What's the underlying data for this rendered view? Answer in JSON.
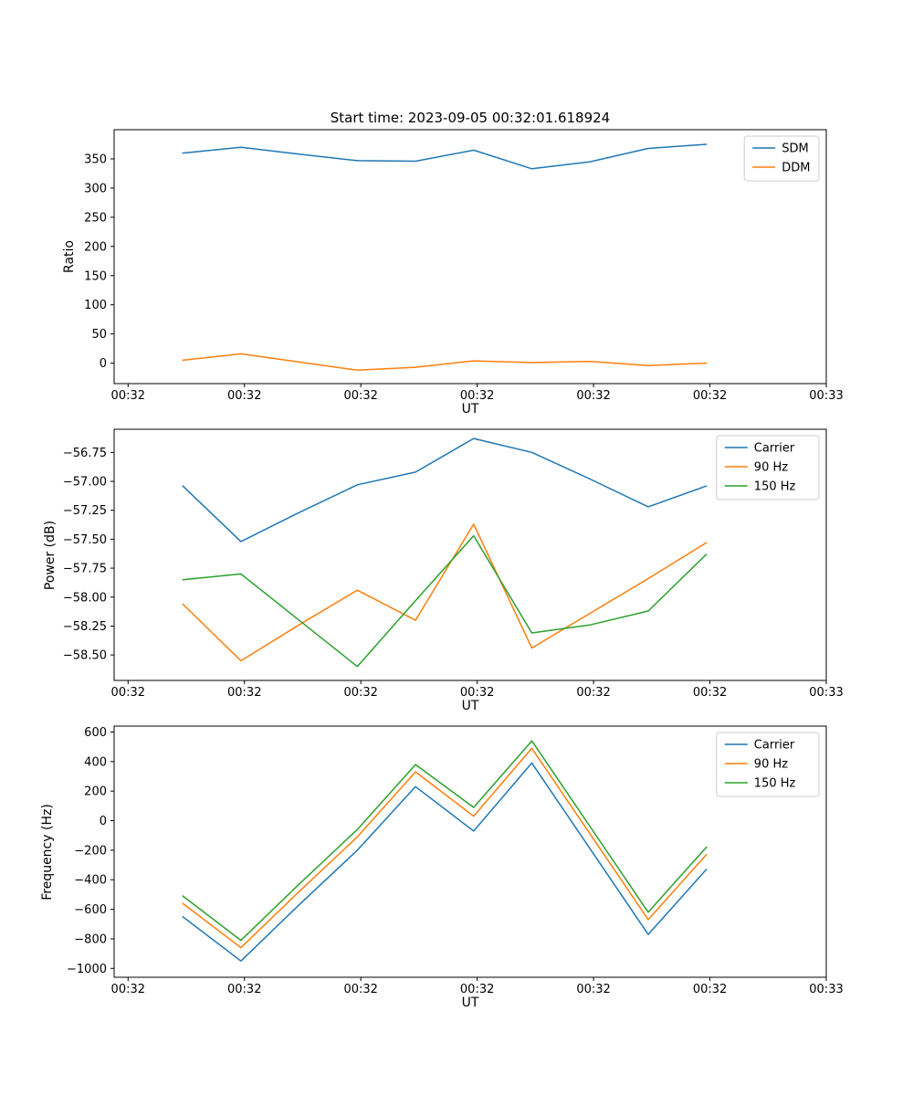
{
  "figure": {
    "background": "#ffffff",
    "text_color": "#000000"
  },
  "chart_data": [
    {
      "type": "line",
      "title": "Start time: 2023-09-05 00:32:01.618924",
      "xlabel": "UT",
      "ylabel": "Ratio",
      "x": [
        4.7,
        9.7,
        14.7,
        19.7,
        24.7,
        29.7,
        34.7,
        39.7,
        44.7,
        49.7
      ],
      "xlim": [
        -1.2,
        60
      ],
      "xticks": [
        0,
        10,
        20,
        30,
        40,
        50,
        60
      ],
      "xtick_labels": [
        "00:32",
        "00:32",
        "00:32",
        "00:32",
        "00:32",
        "00:32",
        "00:33"
      ],
      "ylim": [
        -35,
        400
      ],
      "yticks": [
        0,
        50,
        100,
        150,
        200,
        250,
        300,
        350
      ],
      "ytick_labels": [
        "0",
        "50",
        "100",
        "150",
        "200",
        "250",
        "300",
        "350"
      ],
      "grid": false,
      "legend": {
        "location": "upper right"
      },
      "series": [
        {
          "name": "SDM",
          "color": "#1f77b4",
          "values": [
            360,
            370,
            358,
            347,
            346,
            365,
            333,
            345,
            368,
            375
          ]
        },
        {
          "name": "DDM",
          "color": "#ff7f0e",
          "values": [
            5,
            16,
            2,
            -12,
            -7,
            4,
            1,
            3,
            -4,
            0
          ]
        }
      ]
    },
    {
      "type": "line",
      "title": "",
      "xlabel": "UT",
      "ylabel": "Power (dB)",
      "x": [
        4.7,
        9.7,
        14.7,
        19.7,
        24.7,
        29.7,
        34.7,
        39.7,
        44.7,
        49.7
      ],
      "xlim": [
        -1.2,
        60
      ],
      "xticks": [
        0,
        10,
        20,
        30,
        40,
        50,
        60
      ],
      "xtick_labels": [
        "00:32",
        "00:32",
        "00:32",
        "00:32",
        "00:32",
        "00:32",
        "00:33"
      ],
      "ylim": [
        -58.72,
        -56.55
      ],
      "yticks": [
        -58.5,
        -58.25,
        -58.0,
        -57.75,
        -57.5,
        -57.25,
        -57.0,
        -56.75
      ],
      "ytick_labels": [
        "−58.50",
        "−58.25",
        "−58.00",
        "−57.75",
        "−57.50",
        "−57.25",
        "−57.00",
        "−56.75"
      ],
      "grid": false,
      "legend": {
        "location": "upper right"
      },
      "series": [
        {
          "name": "Carrier",
          "color": "#1f77b4",
          "values": [
            -57.04,
            -57.52,
            -57.27,
            -57.03,
            -56.92,
            -56.63,
            -56.75,
            -56.98,
            -57.22,
            -57.04
          ]
        },
        {
          "name": "90 Hz",
          "color": "#ff7f0e",
          "values": [
            -58.06,
            -58.55,
            -58.24,
            -57.94,
            -58.2,
            -57.37,
            -58.44,
            -58.14,
            -57.84,
            -57.53
          ]
        },
        {
          "name": "150 Hz",
          "color": "#2ca02c",
          "values": [
            -57.85,
            -57.8,
            -58.2,
            -58.6,
            -58.03,
            -57.47,
            -58.31,
            -58.24,
            -58.12,
            -57.63
          ]
        }
      ]
    },
    {
      "type": "line",
      "title": "",
      "xlabel": "UT",
      "ylabel": "Frequency (Hz)",
      "x": [
        4.7,
        9.7,
        14.7,
        19.7,
        24.7,
        29.7,
        34.7,
        39.7,
        44.7,
        49.7
      ],
      "xlim": [
        -1.2,
        60
      ],
      "xticks": [
        0,
        10,
        20,
        30,
        40,
        50,
        60
      ],
      "xtick_labels": [
        "00:32",
        "00:32",
        "00:32",
        "00:32",
        "00:32",
        "00:32",
        "00:33"
      ],
      "ylim": [
        -1060,
        640
      ],
      "yticks": [
        -1000,
        -800,
        -600,
        -400,
        -200,
        0,
        200,
        400,
        600
      ],
      "ytick_labels": [
        "−1000",
        "−800",
        "−600",
        "−400",
        "−200",
        "0",
        "200",
        "400",
        "600"
      ],
      "grid": false,
      "legend": {
        "location": "upper right"
      },
      "series": [
        {
          "name": "Carrier",
          "color": "#1f77b4",
          "values": [
            -650,
            -950,
            -570,
            -200,
            230,
            -70,
            390,
            -190,
            -770,
            -330
          ]
        },
        {
          "name": "90 Hz",
          "color": "#ff7f0e",
          "values": [
            -560,
            -860,
            -480,
            -110,
            330,
            30,
            490,
            -90,
            -670,
            -230
          ]
        },
        {
          "name": "150 Hz",
          "color": "#2ca02c",
          "values": [
            -510,
            -810,
            -430,
            -60,
            380,
            90,
            540,
            -40,
            -620,
            -180
          ]
        }
      ]
    }
  ]
}
